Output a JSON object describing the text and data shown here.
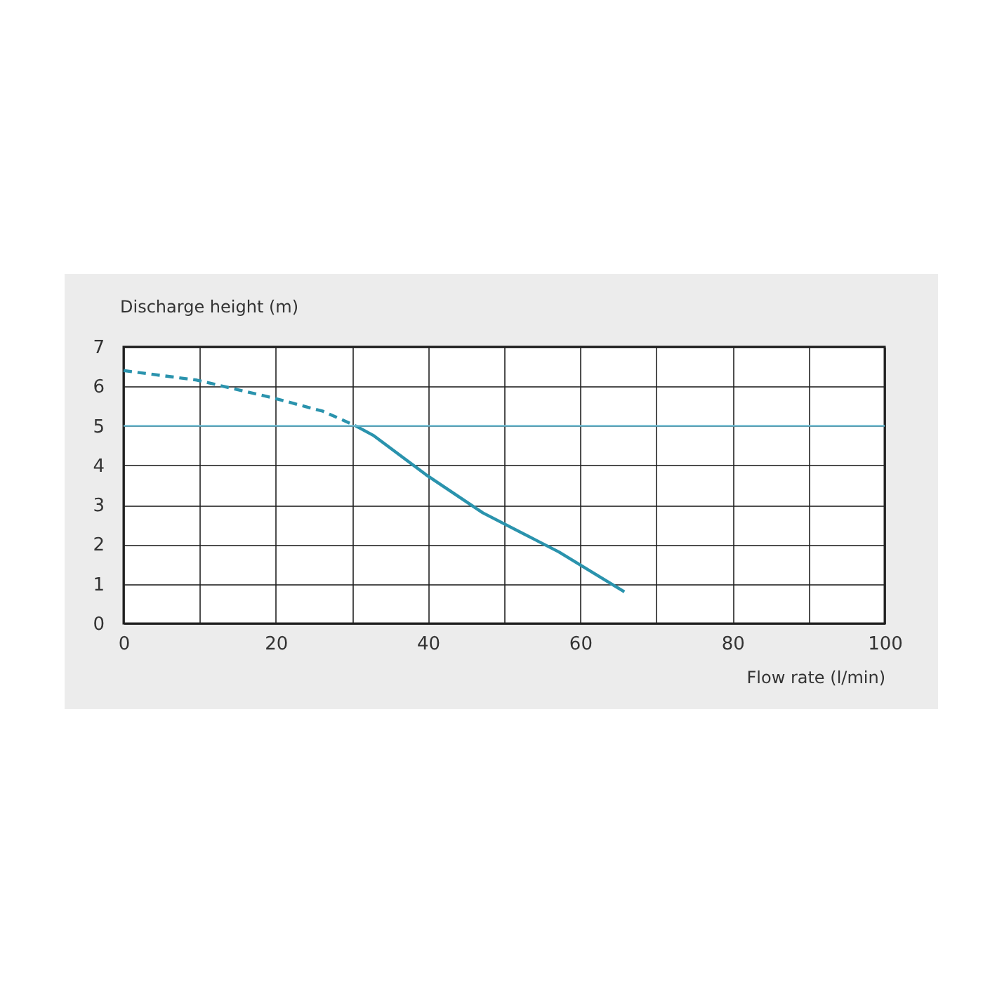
{
  "chart_data": {
    "type": "line",
    "xlabel": "Flow rate (l/min)",
    "ylabel": "Discharge height (m)",
    "series": [
      {
        "color": "#2a93ad",
        "line_style": "dashed",
        "x": [
          0,
          9.6,
          19.8,
          26.2,
          30.5
        ],
        "values": [
          6.4,
          6.16,
          5.7,
          5.37,
          5.0
        ]
      },
      {
        "color": "#2a93ad",
        "line_style": "solid",
        "x": [
          30.5,
          32.9,
          39.7,
          47.2,
          57.2,
          65.8
        ],
        "values": [
          5.0,
          4.75,
          3.77,
          2.8,
          1.81,
          0.8
        ]
      }
    ],
    "xlim": [
      0,
      100
    ],
    "xticks": [
      0,
      {
        "value": 10,
        "label": null
      },
      20,
      {
        "value": 30,
        "label": null
      },
      40,
      {
        "value": 50,
        "label": null
      },
      60,
      {
        "value": 70,
        "label": null
      },
      80,
      {
        "value": 90,
        "label": null
      },
      100
    ],
    "ylim": [
      0,
      7
    ],
    "yticks": [
      0,
      1,
      2,
      3,
      4,
      5,
      6,
      7
    ],
    "ref_lines": [
      {
        "axis": "y",
        "value": 5,
        "color": "#6cbad0"
      }
    ],
    "grid": true,
    "marker": "none"
  }
}
